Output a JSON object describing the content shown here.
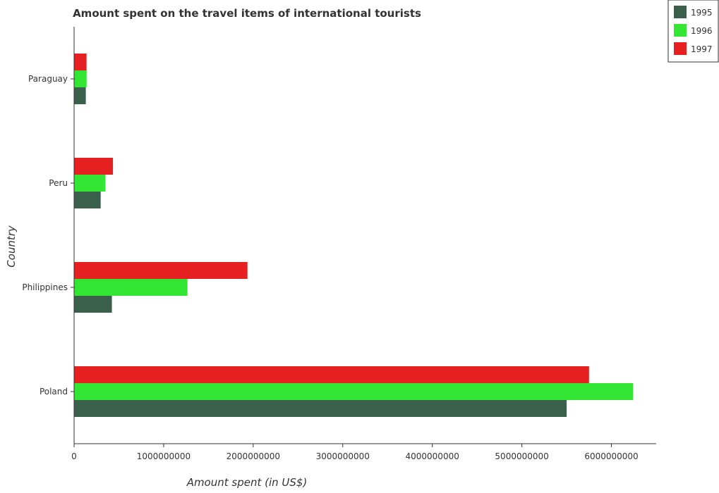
{
  "chart_data": {
    "type": "bar",
    "orientation": "horizontal",
    "title": "Amount spent on the travel items of international tourists",
    "xlabel": "Amount spent (in US$)",
    "ylabel": "Country",
    "categories": [
      "Paraguay",
      "Peru",
      "Philippines",
      "Poland"
    ],
    "series": [
      {
        "name": "1995",
        "color": "#3a5f4a",
        "values": [
          131000000,
          297000000,
          422000000,
          5500000000
        ]
      },
      {
        "name": "1996",
        "color": "#33e633",
        "values": [
          140000000,
          350000000,
          1266000000,
          6240000000
        ]
      },
      {
        "name": "1997",
        "color": "#e62020",
        "values": [
          139000000,
          434000000,
          1936000000,
          5750000000
        ]
      }
    ],
    "xlim": [
      0,
      6500000000
    ],
    "xticks": [
      0,
      1000000000,
      2000000000,
      3000000000,
      4000000000,
      5000000000,
      6000000000
    ],
    "xtick_labels": [
      "0",
      "1000000000",
      "2000000000",
      "3000000000",
      "4000000000",
      "5000000000",
      "6000000000"
    ],
    "grid": false,
    "legend_position": "top-right"
  }
}
